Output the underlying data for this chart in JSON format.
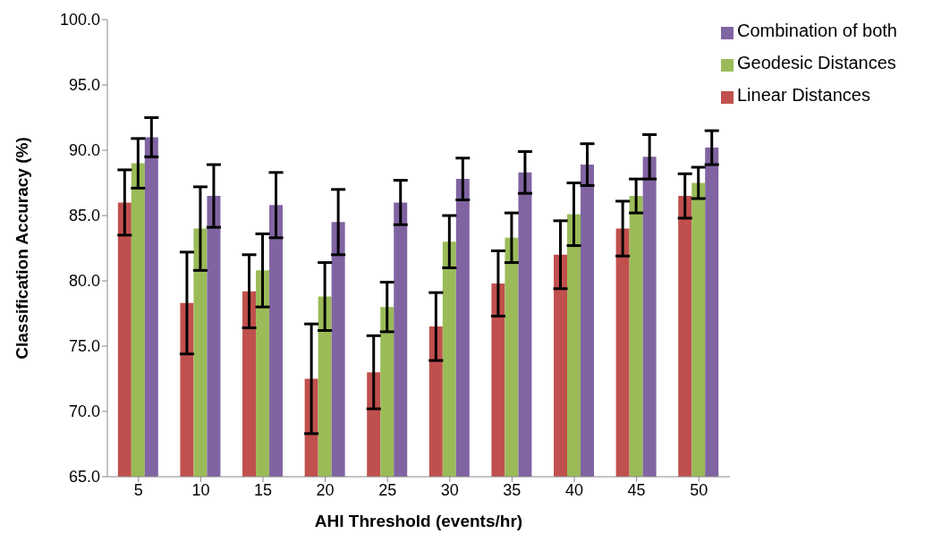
{
  "chart_data": {
    "type": "bar",
    "xlabel": "AHI Threshold  (events/hr)",
    "ylabel": "Classification Accuracy  (%)",
    "categories": [
      "5",
      "10",
      "15",
      "20",
      "25",
      "30",
      "35",
      "40",
      "45",
      "50"
    ],
    "series": [
      {
        "name": "Linear Distances",
        "color": "#c0504d",
        "values": [
          86.0,
          78.3,
          79.2,
          72.5,
          73.0,
          76.5,
          79.8,
          82.0,
          84.0,
          86.5
        ],
        "errors": [
          2.5,
          3.9,
          2.8,
          4.2,
          2.8,
          2.6,
          2.5,
          2.6,
          2.1,
          1.7
        ]
      },
      {
        "name": "Geodesic Distances",
        "color": "#9bbb59",
        "values": [
          89.0,
          84.0,
          80.8,
          78.8,
          78.0,
          83.0,
          83.3,
          85.1,
          86.5,
          87.5
        ],
        "errors": [
          1.9,
          3.2,
          2.8,
          2.6,
          1.9,
          2.0,
          1.9,
          2.4,
          1.3,
          1.2
        ]
      },
      {
        "name": "Combination of both",
        "color": "#8064a2",
        "values": [
          91.0,
          86.5,
          85.8,
          84.5,
          86.0,
          87.8,
          88.3,
          88.9,
          89.5,
          90.2
        ],
        "errors": [
          1.5,
          2.4,
          2.5,
          2.5,
          1.7,
          1.6,
          1.6,
          1.6,
          1.7,
          1.3
        ]
      }
    ],
    "ylim": [
      65,
      100
    ],
    "yticks": [
      {
        "value": 65,
        "label": "65.0"
      },
      {
        "value": 70,
        "label": "70.0"
      },
      {
        "value": 75,
        "label": "75.0"
      },
      {
        "value": 80,
        "label": "80.0"
      },
      {
        "value": 85,
        "label": "85.0"
      },
      {
        "value": 90,
        "label": "90.0"
      },
      {
        "value": 95,
        "label": "95.0"
      },
      {
        "value": 100,
        "label": "100.0"
      }
    ],
    "legend": "top right"
  }
}
